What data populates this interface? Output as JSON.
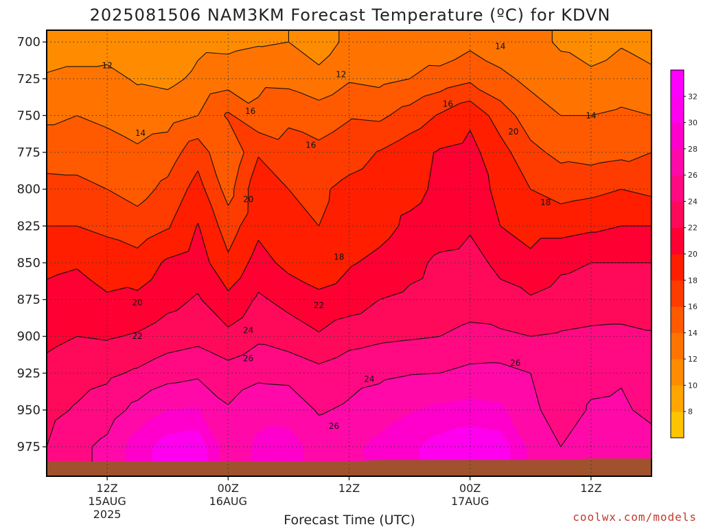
{
  "chart_data": {
    "type": "heatmap",
    "title": "2025081506 NAM3KM Forecast Temperature (ºC) for KDVN",
    "xlabel": "Forecast Time (UTC)",
    "ylabel": "",
    "credit": "coolwx.com/models",
    "x_hours": [
      0,
      6,
      12,
      18,
      24,
      30,
      36,
      42,
      48,
      54,
      60
    ],
    "x_ticks": [
      {
        "hour": 6,
        "lines": [
          "12Z",
          "15AUG",
          "2025"
        ]
      },
      {
        "hour": 18,
        "lines": [
          "00Z",
          "16AUG"
        ]
      },
      {
        "hour": 30,
        "lines": [
          "12Z"
        ]
      },
      {
        "hour": 42,
        "lines": [
          "00Z",
          "17AUG"
        ]
      },
      {
        "hour": 54,
        "lines": [
          "12Z"
        ]
      }
    ],
    "y_levels": [
      700,
      725,
      750,
      775,
      800,
      825,
      850,
      875,
      900,
      925,
      950,
      975
    ],
    "y_ticks": [
      "700",
      "725",
      "750",
      "775",
      "800",
      "825",
      "850",
      "875",
      "900",
      "925",
      "950",
      "975"
    ],
    "ylim": [
      692,
      995
    ],
    "xlim": [
      0,
      60
    ],
    "grid": true,
    "colorbar": {
      "ticks": [
        "8",
        "10",
        "12",
        "14",
        "16",
        "18",
        "20",
        "22",
        "24",
        "26",
        "28",
        "30",
        "32"
      ],
      "levels": [
        6,
        8,
        10,
        12,
        14,
        16,
        18,
        20,
        22,
        24,
        26,
        28,
        30,
        32,
        34
      ],
      "colors": [
        "#ffc400",
        "#ffa500",
        "#ff8c00",
        "#ff7400",
        "#ff5a00",
        "#ff3c00",
        "#ff1e00",
        "#ff0033",
        "#ff0a5a",
        "#ff0a82",
        "#ff0aa8",
        "#ff00cc",
        "#ff00ee",
        "#ff00ff"
      ]
    },
    "temperature": [
      [
        11.0,
        11.0,
        11.2,
        10.5,
        10.5,
        11.6,
        11.5,
        11.8,
        12.0,
        11.0,
        12.5,
        12.3,
        12.6,
        12.5,
        13.5,
        12.8,
        12.5,
        11.8,
        11.0,
        11.8,
        11.2
      ],
      [
        12.2,
        12.5,
        12.5,
        11.8,
        11.5,
        12.4,
        13.0,
        13.5,
        13.4,
        12.6,
        13.8,
        13.5,
        14.0,
        14.8,
        15.6,
        14.5,
        13.5,
        12.6,
        12.5,
        13.0,
        12.5
      ],
      [
        13.6,
        14.0,
        13.6,
        13.0,
        13.2,
        14.0,
        16.3,
        14.5,
        15.6,
        15.0,
        15.8,
        15.6,
        16.8,
        18.2,
        19.6,
        17.0,
        15.0,
        14.0,
        14.0,
        14.3,
        14.0
      ],
      [
        15.2,
        15.2,
        14.8,
        14.3,
        15.0,
        17.2,
        14.0,
        17.8,
        16.8,
        16.5,
        17.2,
        18.1,
        19.2,
        20.2,
        20.6,
        18.8,
        16.5,
        15.5,
        15.2,
        15.5,
        16.0
      ],
      [
        16.6,
        16.5,
        16.0,
        15.3,
        16.5,
        18.8,
        15.2,
        19.4,
        18.0,
        17.7,
        18.5,
        19.0,
        19.4,
        20.4,
        20.8,
        19.6,
        18.0,
        17.2,
        17.5,
        18.0,
        17.5
      ],
      [
        18.0,
        18.0,
        17.5,
        16.8,
        17.8,
        20.1,
        17.0,
        19.5,
        18.4,
        18.0,
        18.6,
        19.3,
        20.4,
        21.0,
        21.8,
        20.0,
        19.2,
        19.2,
        19.6,
        20.0,
        20.0
      ],
      [
        19.5,
        19.8,
        19.2,
        18.8,
        20.3,
        21.0,
        18.4,
        20.8,
        19.4,
        18.7,
        19.8,
        20.5,
        21.4,
        22.4,
        22.6,
        21.6,
        20.5,
        21.6,
        22.0,
        22.0,
        22.0
      ],
      [
        20.6,
        21.0,
        20.2,
        20.4,
        21.4,
        22.2,
        20.5,
        22.3,
        21.4,
        20.5,
        21.0,
        22.0,
        22.4,
        22.8,
        23.2,
        22.5,
        22.2,
        22.8,
        23.0,
        23.0,
        23.0
      ],
      [
        21.5,
        22.0,
        21.8,
        22.2,
        23.0,
        23.4,
        22.5,
        23.6,
        23.0,
        22.2,
        23.2,
        23.6,
        23.8,
        24.0,
        24.5,
        24.4,
        24.0,
        24.2,
        24.4,
        24.5,
        24.2
      ],
      [
        22.6,
        23.2,
        23.6,
        24.3,
        25.2,
        25.6,
        24.8,
        25.5,
        25.4,
        24.6,
        25.3,
        25.6,
        25.9,
        26.0,
        26.5,
        26.6,
        26.0,
        24.8,
        25.5,
        25.8,
        25.0
      ],
      [
        23.4,
        24.2,
        25.0,
        26.6,
        28.0,
        28.2,
        26.2,
        27.4,
        27.2,
        25.8,
        26.3,
        27.0,
        27.8,
        28.4,
        28.7,
        28.4,
        26.5,
        25.0,
        26.2,
        26.3,
        25.5
      ],
      [
        24.0,
        25.5,
        26.5,
        29.0,
        31.0,
        31.5,
        26.5,
        28.4,
        28.8,
        27.2,
        27.5,
        28.5,
        29.6,
        30.8,
        31.6,
        31.2,
        27.5,
        26.0,
        27.2,
        27.4,
        26.8
      ]
    ],
    "contour_levels": [
      12,
      14,
      16,
      18,
      20,
      22,
      24,
      26
    ],
    "contour_labels": [
      {
        "text": "12",
        "hour": 6.0,
        "level": 716
      },
      {
        "text": "12",
        "hour": 29.2,
        "level": 722
      },
      {
        "text": "14",
        "hour": 9.3,
        "level": 762
      },
      {
        "text": "14",
        "hour": 45.0,
        "level": 703
      },
      {
        "text": "14",
        "hour": 54.0,
        "level": 750
      },
      {
        "text": "16",
        "hour": 20.2,
        "level": 747
      },
      {
        "text": "16",
        "hour": 26.2,
        "level": 770
      },
      {
        "text": "16",
        "hour": 39.8,
        "level": 742
      },
      {
        "text": "18",
        "hour": 29.0,
        "level": 846
      },
      {
        "text": "18",
        "hour": 49.5,
        "level": 809
      },
      {
        "text": "20",
        "hour": 20.0,
        "level": 807
      },
      {
        "text": "20",
        "hour": 46.3,
        "level": 761
      },
      {
        "text": "20",
        "hour": 9.0,
        "level": 877
      },
      {
        "text": "22",
        "hour": 9.0,
        "level": 900
      },
      {
        "text": "22",
        "hour": 27.0,
        "level": 879
      },
      {
        "text": "24",
        "hour": 20.0,
        "level": 896
      },
      {
        "text": "24",
        "hour": 32.0,
        "level": 929
      },
      {
        "text": "26",
        "hour": 20.0,
        "level": 915
      },
      {
        "text": "26",
        "hour": 28.5,
        "level": 961
      },
      {
        "text": "26",
        "hour": 46.5,
        "level": 918
      }
    ],
    "surface_pressure": [
      985,
      985,
      985,
      985,
      985,
      985,
      985,
      985,
      985,
      985,
      985,
      984,
      984,
      984,
      984,
      984,
      984,
      984,
      983,
      983,
      983
    ]
  }
}
